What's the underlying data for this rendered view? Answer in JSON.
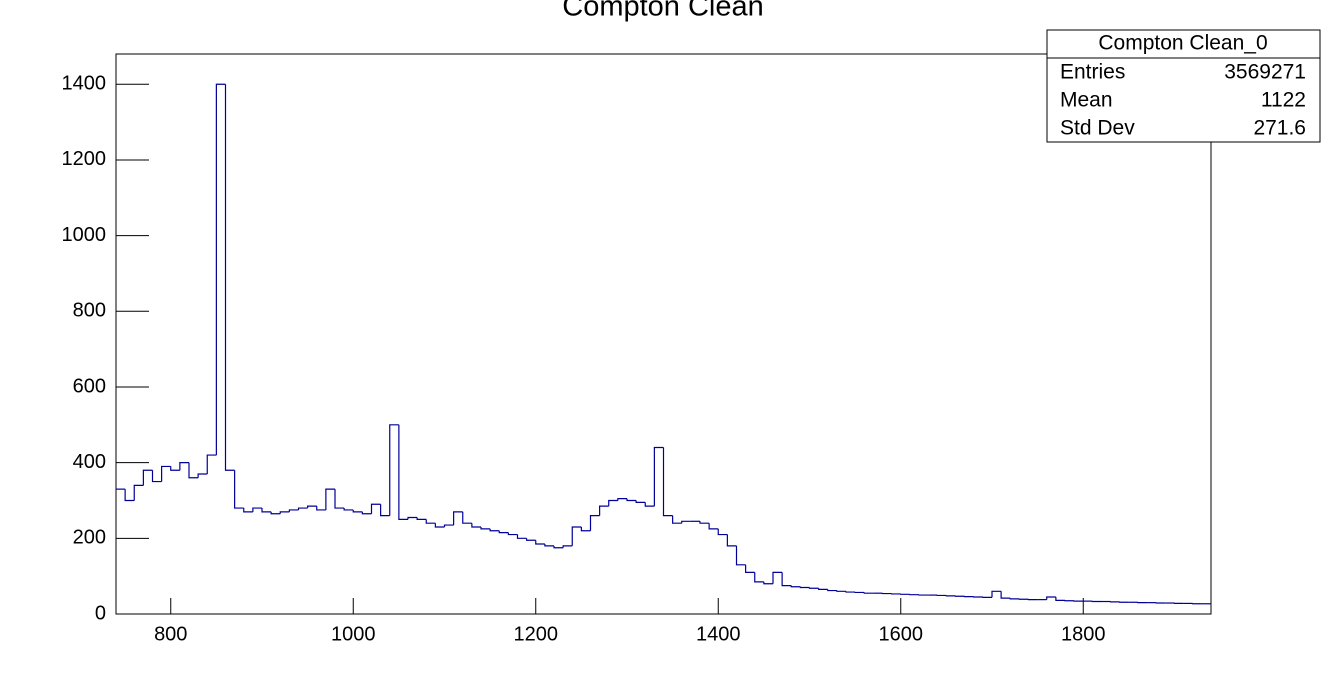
{
  "chart_data": {
    "type": "histogram",
    "title": "Compton Clean",
    "color": "#000099",
    "bins": [
      740,
      750,
      760,
      770,
      780,
      790,
      800,
      810,
      820,
      830,
      840,
      850,
      860,
      870,
      880,
      890,
      900,
      910,
      920,
      930,
      940,
      950,
      960,
      970,
      980,
      990,
      1000,
      1010,
      1020,
      1030,
      1040,
      1050,
      1060,
      1070,
      1080,
      1090,
      1100,
      1110,
      1120,
      1130,
      1140,
      1150,
      1160,
      1170,
      1180,
      1190,
      1200,
      1210,
      1220,
      1230,
      1240,
      1250,
      1260,
      1270,
      1280,
      1290,
      1300,
      1310,
      1320,
      1330,
      1340,
      1350,
      1360,
      1370,
      1380,
      1390,
      1400,
      1410,
      1420,
      1430,
      1440,
      1450,
      1460,
      1470,
      1480,
      1490,
      1500,
      1510,
      1520,
      1530,
      1540,
      1550,
      1560,
      1570,
      1580,
      1590,
      1600,
      1610,
      1620,
      1630,
      1640,
      1650,
      1660,
      1670,
      1680,
      1690,
      1700,
      1710,
      1720,
      1730,
      1740,
      1750,
      1760,
      1770,
      1780,
      1790,
      1800,
      1810,
      1820,
      1830,
      1840,
      1850,
      1860,
      1870,
      1880,
      1890,
      1900,
      1910,
      1920,
      1930,
      1940
    ],
    "counts": [
      330,
      300,
      340,
      380,
      350,
      390,
      380,
      400,
      360,
      370,
      420,
      1400,
      380,
      280,
      270,
      280,
      270,
      265,
      270,
      275,
      280,
      285,
      275,
      330,
      280,
      275,
      270,
      265,
      290,
      260,
      500,
      250,
      255,
      250,
      240,
      230,
      235,
      270,
      240,
      230,
      225,
      220,
      215,
      210,
      200,
      195,
      185,
      180,
      175,
      180,
      230,
      220,
      260,
      285,
      300,
      305,
      300,
      295,
      285,
      440,
      260,
      240,
      245,
      245,
      240,
      225,
      210,
      180,
      130,
      110,
      85,
      80,
      110,
      75,
      72,
      70,
      68,
      65,
      62,
      60,
      58,
      57,
      55,
      55,
      54,
      53,
      52,
      51,
      50,
      50,
      49,
      48,
      47,
      46,
      45,
      44,
      60,
      42,
      40,
      39,
      38,
      38,
      45,
      36,
      35,
      34,
      34,
      33,
      33,
      32,
      31,
      31,
      30,
      30,
      29,
      29,
      28,
      28,
      27,
      27
    ],
    "xlim": [
      740,
      1940
    ],
    "ylim": [
      0,
      1480
    ],
    "xticks": [
      800,
      1000,
      1200,
      1400,
      1600,
      1800
    ],
    "yticks": [
      0,
      200,
      400,
      600,
      800,
      1000,
      1200,
      1400
    ],
    "stats": {
      "title": "Compton Clean_0",
      "rows": [
        {
          "label": "Entries",
          "value": 3569271
        },
        {
          "label": "Mean",
          "value": 1122
        },
        {
          "label": "Std Dev",
          "value": 271.6
        }
      ]
    }
  }
}
